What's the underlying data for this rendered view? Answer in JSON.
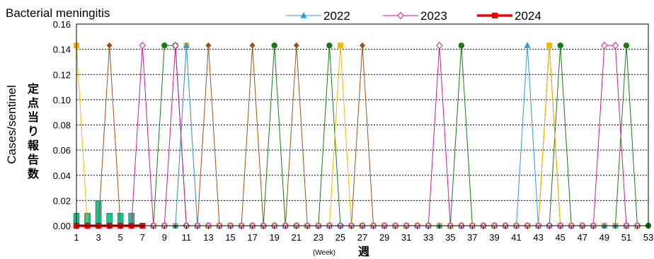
{
  "chart_data": {
    "type": "line",
    "title": "Bacterial meningitis",
    "ylabel": "Cases/sentinel",
    "ylabel_jp": [
      "定",
      "点",
      "当",
      "り",
      "報",
      "告",
      "数"
    ],
    "xlabel_en": "(Week)",
    "xlabel_jp": "週",
    "ylim": [
      0,
      0.16
    ],
    "y_ticks": [
      "0.00",
      "0.02",
      "0.04",
      "0.06",
      "0.08",
      "0.10",
      "0.12",
      "0.14",
      "0.16"
    ],
    "x_ticks": [
      "1",
      "3",
      "5",
      "7",
      "9",
      "11",
      "13",
      "15",
      "17",
      "19",
      "21",
      "23",
      "25",
      "27",
      "29",
      "31",
      "33",
      "35",
      "37",
      "39",
      "41",
      "43",
      "45",
      "47",
      "49",
      "51",
      "53"
    ],
    "grid": true,
    "legend_placement": "top",
    "series": [
      {
        "name": "2022",
        "color": "#2e9ad6",
        "marker": "triangle",
        "values": [
          0,
          0,
          0,
          0,
          0,
          0,
          0,
          0,
          0,
          0,
          0.143,
          0,
          0,
          0,
          0,
          0,
          0,
          0,
          0,
          0,
          0,
          0,
          0,
          0,
          0,
          0,
          0,
          0,
          0,
          0,
          0,
          0,
          0,
          0,
          0,
          0,
          0,
          0,
          0,
          0,
          0,
          0.143,
          0,
          0,
          0,
          0,
          0,
          0,
          0,
          0,
          0,
          0
        ]
      },
      {
        "name": "2023",
        "color": "#cc1a96",
        "marker": "diamond-open",
        "values": [
          0,
          0,
          0,
          0,
          0,
          0,
          0.143,
          0,
          0,
          0.143,
          0,
          0,
          0,
          0,
          0,
          0,
          0,
          0,
          0,
          0,
          0,
          0,
          0,
          0,
          0,
          0,
          0,
          0,
          0,
          0,
          0,
          0,
          0,
          0.143,
          0,
          0,
          0,
          0,
          0,
          0,
          0,
          0,
          0,
          0,
          0,
          0,
          0,
          0,
          0.143,
          0.143,
          0,
          0
        ]
      },
      {
        "name": "2024",
        "color": "#ee0000",
        "marker": "square",
        "values": [
          0,
          0,
          0,
          0,
          0,
          0,
          0
        ]
      },
      {
        "name": "",
        "color": "#1a7a1a",
        "marker": "circle",
        "values": [
          0,
          0,
          0,
          0,
          0,
          0,
          0,
          0,
          0.143,
          0.143,
          0,
          0,
          0,
          0,
          0,
          0,
          0,
          0,
          0.143,
          0,
          0,
          0,
          0,
          0.143,
          0,
          0,
          0,
          0,
          0,
          0,
          0,
          0,
          0,
          0,
          0,
          0.143,
          0,
          0,
          0,
          0,
          0,
          0,
          0,
          0,
          0.143,
          0,
          0,
          0,
          0,
          0,
          0.143,
          0,
          0
        ]
      },
      {
        "name": "",
        "color": "#a0521a",
        "marker": "diamond",
        "values": [
          0,
          0,
          0,
          0.143,
          0,
          0,
          0,
          0,
          0,
          0,
          0,
          0,
          0.143,
          0,
          0,
          0,
          0.143,
          0,
          0,
          0,
          0.143,
          0,
          0,
          0,
          0,
          0,
          0.143,
          0,
          0,
          0,
          0,
          0,
          0,
          0,
          0,
          0,
          0,
          0,
          0,
          0,
          0,
          0,
          0,
          0.143,
          0,
          0,
          0,
          0,
          0,
          0,
          0,
          0
        ]
      },
      {
        "name": "",
        "color": "#f2b800",
        "marker": "square",
        "values": [
          0.143,
          0,
          0,
          0,
          0,
          0,
          0,
          0,
          0,
          0,
          0.143,
          0,
          0,
          0,
          0,
          0,
          0,
          0,
          0,
          0,
          0,
          0,
          0,
          0,
          0.143,
          0,
          0,
          0,
          0,
          0,
          0,
          0,
          0,
          0,
          0,
          0,
          0,
          0,
          0,
          0,
          0,
          0,
          0,
          0.143,
          0,
          0,
          0,
          0,
          0,
          0,
          0,
          0
        ]
      }
    ],
    "bars": {
      "color": "#1fbf8f",
      "weeks": [
        1,
        2,
        3,
        4,
        5,
        6
      ],
      "values": [
        0.01,
        0.01,
        0.02,
        0.01,
        0.01,
        0.01
      ]
    }
  }
}
